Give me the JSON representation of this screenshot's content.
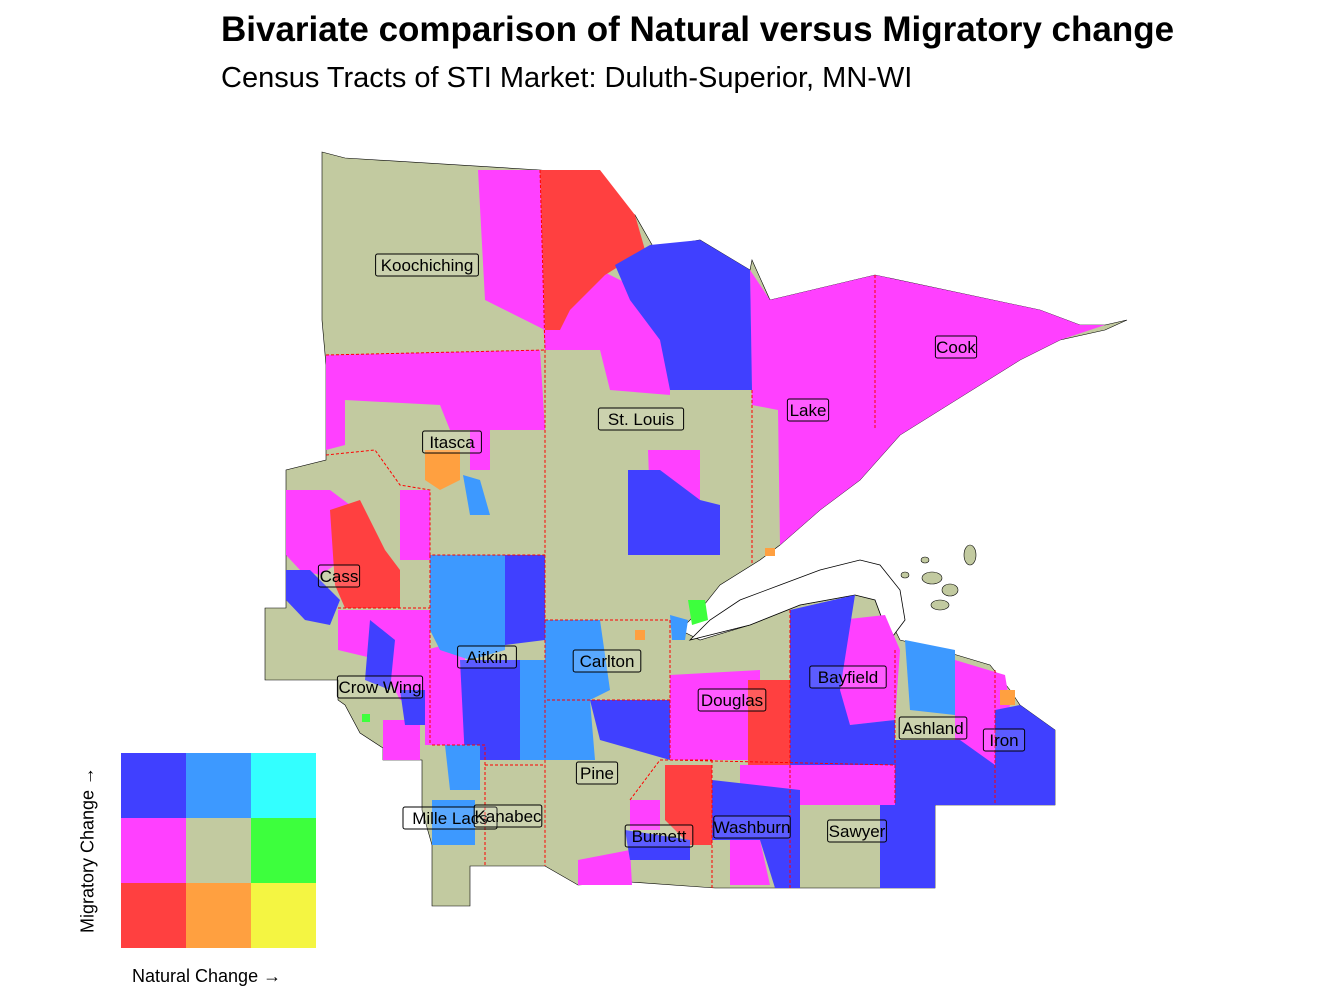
{
  "title": "Bivariate comparison of Natural versus Migratory change",
  "subtitle": "Census Tracts of STI Market: Duluth-Superior, MN-WI",
  "colors": {
    "low_low": "#ff4040",
    "low_mid": "#ff40ff",
    "low_high": "#4040ff",
    "mid_low": "#ffa040",
    "mid_mid": "#c2caa0",
    "mid_high": "#3d99ff",
    "high_low": "#f4f542",
    "high_mid": "#3dff3d",
    "high_high": "#33ffff",
    "water": "#ffffff",
    "boundary": "#ff0000"
  },
  "counties": [
    {
      "name": "Koochiching"
    },
    {
      "name": "Cook"
    },
    {
      "name": "Lake"
    },
    {
      "name": "St. Louis"
    },
    {
      "name": "Itasca"
    },
    {
      "name": "Cass"
    },
    {
      "name": "Aitkin"
    },
    {
      "name": "Carlton"
    },
    {
      "name": "Crow Wing"
    },
    {
      "name": "Douglas"
    },
    {
      "name": "Bayfield"
    },
    {
      "name": "Ashland"
    },
    {
      "name": "Iron"
    },
    {
      "name": "Pine"
    },
    {
      "name": "Mille Lacs"
    },
    {
      "name": "Kanabec"
    },
    {
      "name": "Burnett"
    },
    {
      "name": "Washburn"
    },
    {
      "name": "Sawyer"
    }
  ],
  "legend": {
    "x_label": "Natural Change →",
    "y_label": "Migratory Change →",
    "grid": [
      [
        "#4040ff",
        "#3d99ff",
        "#33ffff"
      ],
      [
        "#ff40ff",
        "#c2caa0",
        "#3dff3d"
      ],
      [
        "#ff4040",
        "#ffa040",
        "#f4f542"
      ]
    ]
  }
}
